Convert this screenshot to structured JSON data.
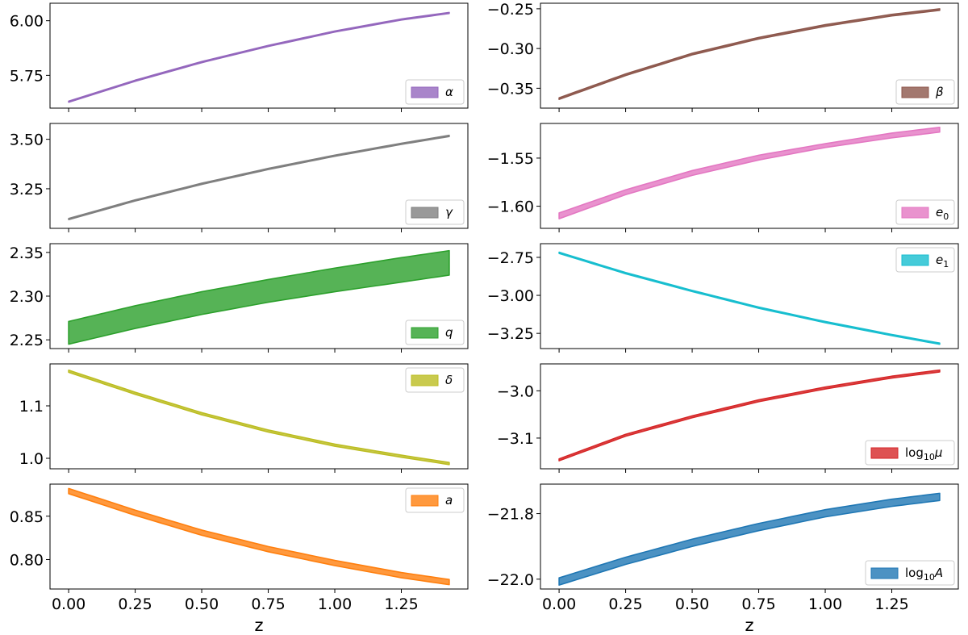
{
  "chart_data": [
    {
      "type": "area",
      "legend_label": "α",
      "sub": "",
      "legend_loc": "lower-right",
      "color": "#9467bd",
      "x": [
        0,
        0.25,
        0.5,
        0.75,
        1.0,
        1.25,
        1.43
      ],
      "lower": [
        5.627,
        5.723,
        5.808,
        5.882,
        5.948,
        6.003,
        6.033
      ],
      "upper": [
        5.632,
        5.728,
        5.813,
        5.887,
        5.953,
        6.008,
        6.038
      ],
      "ylim": [
        5.6,
        6.08
      ],
      "yticks": [
        5.75,
        6.0
      ],
      "yticklabels": [
        "5.75",
        "6.00"
      ]
    },
    {
      "type": "area",
      "legend_label": "β",
      "sub": "",
      "legend_loc": "lower-right",
      "color": "#8c564b",
      "x": [
        0,
        0.25,
        0.5,
        0.75,
        1.0,
        1.25,
        1.43
      ],
      "lower": [
        -0.364,
        -0.334,
        -0.308,
        -0.288,
        -0.272,
        -0.259,
        -0.252
      ],
      "upper": [
        -0.362,
        -0.332,
        -0.306,
        -0.286,
        -0.27,
        -0.257,
        -0.25
      ],
      "ylim": [
        -0.375,
        -0.243
      ],
      "yticks": [
        -0.35,
        -0.3,
        -0.25
      ],
      "yticklabels": [
        "−0.35",
        "−0.30",
        "−0.25"
      ]
    },
    {
      "type": "area",
      "legend_label": "γ",
      "sub": "",
      "legend_loc": "lower-right",
      "color": "#7f7f7f",
      "x": [
        0,
        0.25,
        0.5,
        0.75,
        1.0,
        1.25,
        1.43
      ],
      "lower": [
        3.094,
        3.188,
        3.272,
        3.347,
        3.414,
        3.474,
        3.514
      ],
      "upper": [
        3.1,
        3.194,
        3.278,
        3.353,
        3.42,
        3.48,
        3.52
      ],
      "ylim": [
        3.05,
        3.58
      ],
      "yticks": [
        3.25,
        3.5
      ],
      "yticklabels": [
        "3.25",
        "3.50"
      ]
    },
    {
      "type": "area",
      "legend_label": "e",
      "sub": "0",
      "legend_loc": "lower-right",
      "color": "#e377c2",
      "x": [
        0,
        0.25,
        0.5,
        0.75,
        1.0,
        1.25,
        1.43
      ],
      "lower": [
        -1.613,
        -1.588,
        -1.568,
        -1.552,
        -1.539,
        -1.529,
        -1.523
      ],
      "upper": [
        -1.607,
        -1.583,
        -1.563,
        -1.547,
        -1.535,
        -1.524,
        -1.518
      ],
      "ylim": [
        -1.623,
        -1.514
      ],
      "yticks": [
        -1.6,
        -1.55
      ],
      "yticklabels": [
        "−1.60",
        "−1.55"
      ]
    },
    {
      "type": "area",
      "legend_label": "q",
      "sub": "",
      "legend_loc": "lower-right",
      "color": "#2ca02c",
      "x": [
        0,
        0.25,
        0.5,
        0.75,
        1.0,
        1.25,
        1.43
      ],
      "lower": [
        2.245,
        2.263,
        2.279,
        2.293,
        2.305,
        2.316,
        2.324
      ],
      "upper": [
        2.271,
        2.289,
        2.305,
        2.319,
        2.332,
        2.344,
        2.352
      ],
      "ylim": [
        2.24,
        2.36
      ],
      "yticks": [
        2.25,
        2.3,
        2.35
      ],
      "yticklabels": [
        "2.25",
        "2.30",
        "2.35"
      ]
    },
    {
      "type": "area",
      "legend_label": "e",
      "sub": "1",
      "legend_loc": "upper-right",
      "color": "#17becf",
      "x": [
        0,
        0.25,
        0.5,
        0.75,
        1.0,
        1.25,
        1.43
      ],
      "lower": [
        -2.724,
        -2.858,
        -2.975,
        -3.085,
        -3.18,
        -3.265,
        -3.322
      ],
      "upper": [
        -2.716,
        -2.85,
        -2.967,
        -3.077,
        -3.172,
        -3.257,
        -3.314
      ],
      "ylim": [
        -3.35,
        -2.66
      ],
      "yticks": [
        -3.25,
        -3.0,
        -2.75
      ],
      "yticklabels": [
        "−3.25",
        "−3.00",
        "−2.75"
      ]
    },
    {
      "type": "area",
      "legend_label": "δ",
      "sub": "",
      "legend_loc": "upper-right",
      "color": "#bcbd22",
      "x": [
        0,
        0.25,
        0.5,
        0.75,
        1.0,
        1.25,
        1.43
      ],
      "lower": [
        1.164,
        1.122,
        1.083,
        1.05,
        1.023,
        1.002,
        0.988
      ],
      "upper": [
        1.168,
        1.126,
        1.087,
        1.054,
        1.027,
        1.006,
        0.992
      ],
      "ylim": [
        0.98,
        1.18
      ],
      "yticks": [
        1.0,
        1.1
      ],
      "yticklabels": [
        "1.0",
        "1.1"
      ]
    },
    {
      "type": "area",
      "legend_label": "μ",
      "sub": "",
      "prefix": "log",
      "prefix_sub": "10",
      "legend_loc": "lower-right",
      "color": "#d62728",
      "x": [
        0,
        0.25,
        0.5,
        0.75,
        1.0,
        1.25,
        1.43
      ],
      "lower": [
        -3.148,
        -3.096,
        -3.057,
        -3.023,
        -2.996,
        -2.973,
        -2.96
      ],
      "upper": [
        -3.144,
        -3.092,
        -3.053,
        -3.019,
        -2.992,
        -2.969,
        -2.956
      ],
      "ylim": [
        -3.165,
        -2.943
      ],
      "yticks": [
        -3.1,
        -3.0
      ],
      "yticklabels": [
        "−3.1",
        "−3.0"
      ]
    },
    {
      "type": "area",
      "legend_label": "a",
      "sub": "",
      "legend_loc": "upper-right",
      "color": "#ff7f0e",
      "x": [
        0,
        0.25,
        0.5,
        0.75,
        1.0,
        1.25,
        1.43
      ],
      "lower": [
        0.876,
        0.851,
        0.828,
        0.809,
        0.793,
        0.779,
        0.771
      ],
      "upper": [
        0.882,
        0.857,
        0.834,
        0.815,
        0.799,
        0.785,
        0.777
      ],
      "ylim": [
        0.766,
        0.887
      ],
      "yticks": [
        0.8,
        0.85
      ],
      "yticklabels": [
        "0.80",
        "0.85"
      ]
    },
    {
      "type": "area",
      "legend_label": "A",
      "sub": "",
      "prefix": "log",
      "prefix_sub": "10",
      "legend_loc": "lower-right",
      "color": "#1f77b4",
      "x": [
        0,
        0.25,
        0.5,
        0.75,
        1.0,
        1.25,
        1.43
      ],
      "lower": [
        -22.018,
        -21.955,
        -21.9,
        -21.852,
        -21.81,
        -21.778,
        -21.76
      ],
      "upper": [
        -21.996,
        -21.933,
        -21.878,
        -21.83,
        -21.788,
        -21.756,
        -21.738
      ],
      "ylim": [
        -22.03,
        -21.71
      ],
      "yticks": [
        -22.0,
        -21.8
      ],
      "yticklabels": [
        "−22.0",
        "−21.8"
      ]
    }
  ],
  "x_axis": {
    "label": "z",
    "xlim": [
      -0.07,
      1.5
    ],
    "ticks": [
      0,
      0.25,
      0.5,
      0.75,
      1.0,
      1.25
    ],
    "ticklabels": [
      "0.00",
      "0.25",
      "0.50",
      "0.75",
      "1.00",
      "1.25"
    ]
  }
}
